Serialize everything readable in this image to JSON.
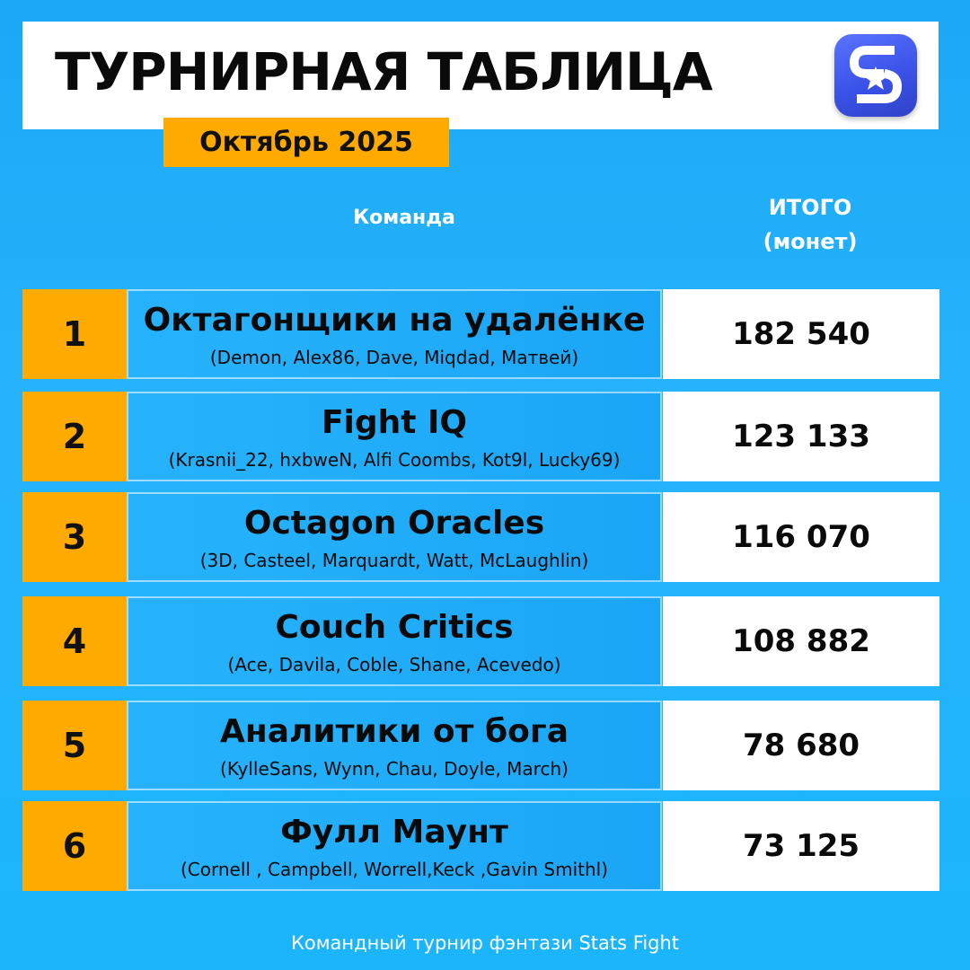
{
  "header": {
    "title": "ТУРНИРНАЯ ТАБЛИЦА",
    "period": "Октябрь 2025",
    "logo_icon": "stats-fight-logo-icon"
  },
  "columns": {
    "team": "Команда",
    "total_line1": "ИТОГО",
    "total_line2": "(монет)"
  },
  "rows": [
    {
      "rank": "1",
      "team": "Октагонщики на удалёнке",
      "members": "(Demon, Alex86, Dave, Miqdad, Матвей)",
      "total": "182 540"
    },
    {
      "rank": "2",
      "team": "Fight IQ",
      "members": "(Krasnii_22, hxbweN, Alfi Coombs, Kot9l, Lucky69)",
      "total": "123 133"
    },
    {
      "rank": "3",
      "team": "Octagon Oracles",
      "members": "(3D, Casteel, Marquardt, Watt, McLaughlin)",
      "total": "116 070"
    },
    {
      "rank": "4",
      "team": "Couch Critics",
      "members": "(Ace, Davila, Coble, Shane, Acevedo)",
      "total": "108 882"
    },
    {
      "rank": "5",
      "team": "Аналитики от бога",
      "members": "(KylleSans, Wynn, Chau, Doyle, March)",
      "total": "78 680"
    },
    {
      "rank": "6",
      "team": "Фулл Маунт",
      "members": "(Cornell , Campbell,  Worrell,Keck ,Gavin Smithl)",
      "total": "73 125"
    }
  ],
  "footer": "Командный турнир фэнтази Stats Fight",
  "colors": {
    "background": "#1aa8f7",
    "accent": "#ffaa00",
    "logo": "#3a52e8"
  }
}
